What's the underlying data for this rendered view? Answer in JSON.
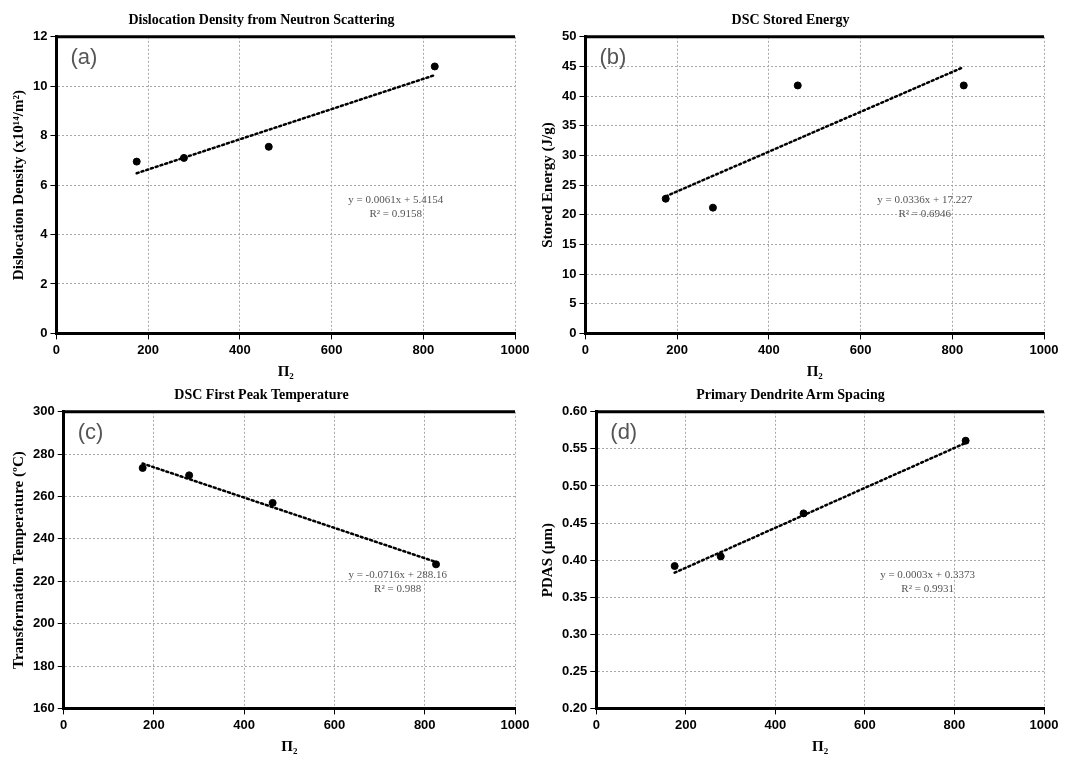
{
  "chart_data": [
    {
      "type": "scatter",
      "title": "Dislocation Density from Neutron Scattering",
      "xlabel": "Π₂",
      "ylabel": "Dislocation Density (x10¹⁴/m²)",
      "x": [
        175,
        278,
        463,
        825
      ],
      "xlim": [
        0,
        1000
      ],
      "xticks": [
        0,
        200,
        400,
        600,
        800,
        1000
      ],
      "ylim": [
        0,
        12
      ],
      "yticks": [
        0,
        2,
        4,
        6,
        8,
        10,
        12
      ],
      "grid": true,
      "series": [
        {
          "values": [
            6.95,
            7.1,
            7.55,
            10.8
          ],
          "color": "#000000",
          "marker": "circle"
        },
        {
          "type": "line",
          "values": [
            6.48,
            null,
            null,
            10.45
          ],
          "color": "#000000",
          "line_style": "dotted",
          "marker": "none"
        }
      ],
      "annotations": [
        "(a)",
        "y = 0.0061x + 5.4154",
        "R² = 0.9158"
      ]
    },
    {
      "type": "scatter",
      "title": "DSC Stored Energy",
      "xlabel": "Π₂",
      "ylabel": "Stored Energy (J/g)",
      "x": [
        175,
        278,
        463,
        825
      ],
      "xlim": [
        0,
        1000
      ],
      "xticks": [
        0,
        200,
        400,
        600,
        800,
        1000
      ],
      "ylim": [
        0,
        50
      ],
      "yticks": [
        0,
        5,
        10,
        15,
        20,
        25,
        30,
        35,
        40,
        45,
        50
      ],
      "grid": true,
      "series": [
        {
          "values": [
            22.7,
            21.2,
            41.8,
            41.8
          ],
          "color": "#000000",
          "marker": "circle"
        },
        {
          "type": "line",
          "values": [
            23.1,
            null,
            null,
            44.9
          ],
          "color": "#000000",
          "line_style": "dotted",
          "marker": "none"
        }
      ],
      "annotations": [
        "(b)",
        "y = 0.0336x + 17.227",
        "R² = 0.6946"
      ]
    },
    {
      "type": "scatter",
      "title": "DSC First Peak Temperature",
      "xlabel": "Π₂",
      "ylabel": "Transformation Temperature (ºC)",
      "x": [
        175,
        278,
        463,
        825
      ],
      "xlim": [
        0,
        1000
      ],
      "xticks": [
        0,
        200,
        400,
        600,
        800,
        1000
      ],
      "ylim": [
        160,
        300
      ],
      "yticks": [
        160,
        180,
        200,
        220,
        240,
        260,
        280,
        300
      ],
      "grid": true,
      "series": [
        {
          "values": [
            273.5,
            270,
            257,
            228
          ],
          "color": "#000000",
          "marker": "circle"
        },
        {
          "type": "line",
          "values": [
            275.6,
            null,
            null,
            229.1
          ],
          "color": "#000000",
          "line_style": "dotted",
          "marker": "none"
        }
      ],
      "annotations": [
        "(c)",
        "y = -0.0716x + 288.16",
        "R² = 0.988"
      ]
    },
    {
      "type": "scatter",
      "title": "Primary Dendrite Arm Spacing",
      "xlabel": "Π₂",
      "ylabel": "PDAS (µm)",
      "x": [
        175,
        278,
        463,
        825
      ],
      "xlim": [
        0,
        1000
      ],
      "xticks": [
        0,
        200,
        400,
        600,
        800,
        1000
      ],
      "ylim": [
        0.2,
        0.6
      ],
      "yticks": [
        {
          "value": 0.2,
          "label": "0.20"
        },
        {
          "value": 0.25,
          "label": "0.25"
        },
        {
          "value": 0.3,
          "label": "0.30"
        },
        {
          "value": 0.35,
          "label": "0.35"
        },
        {
          "value": 0.4,
          "label": "0.40"
        },
        {
          "value": 0.45,
          "label": "0.45"
        },
        {
          "value": 0.5,
          "label": "0.50"
        },
        {
          "value": 0.55,
          "label": "0.55"
        },
        {
          "value": 0.6,
          "label": "0.60"
        }
      ],
      "grid": true,
      "series": [
        {
          "values": [
            0.392,
            0.405,
            0.463,
            0.561
          ],
          "color": "#000000",
          "marker": "circle"
        },
        {
          "type": "line",
          "values": [
            0.383,
            null,
            null,
            0.558
          ],
          "color": "#000000",
          "line_style": "dotted",
          "marker": "none"
        }
      ],
      "annotations": [
        "(d)",
        "y = 0.0003x + 0.3373",
        "R² = 0.9931"
      ]
    }
  ]
}
